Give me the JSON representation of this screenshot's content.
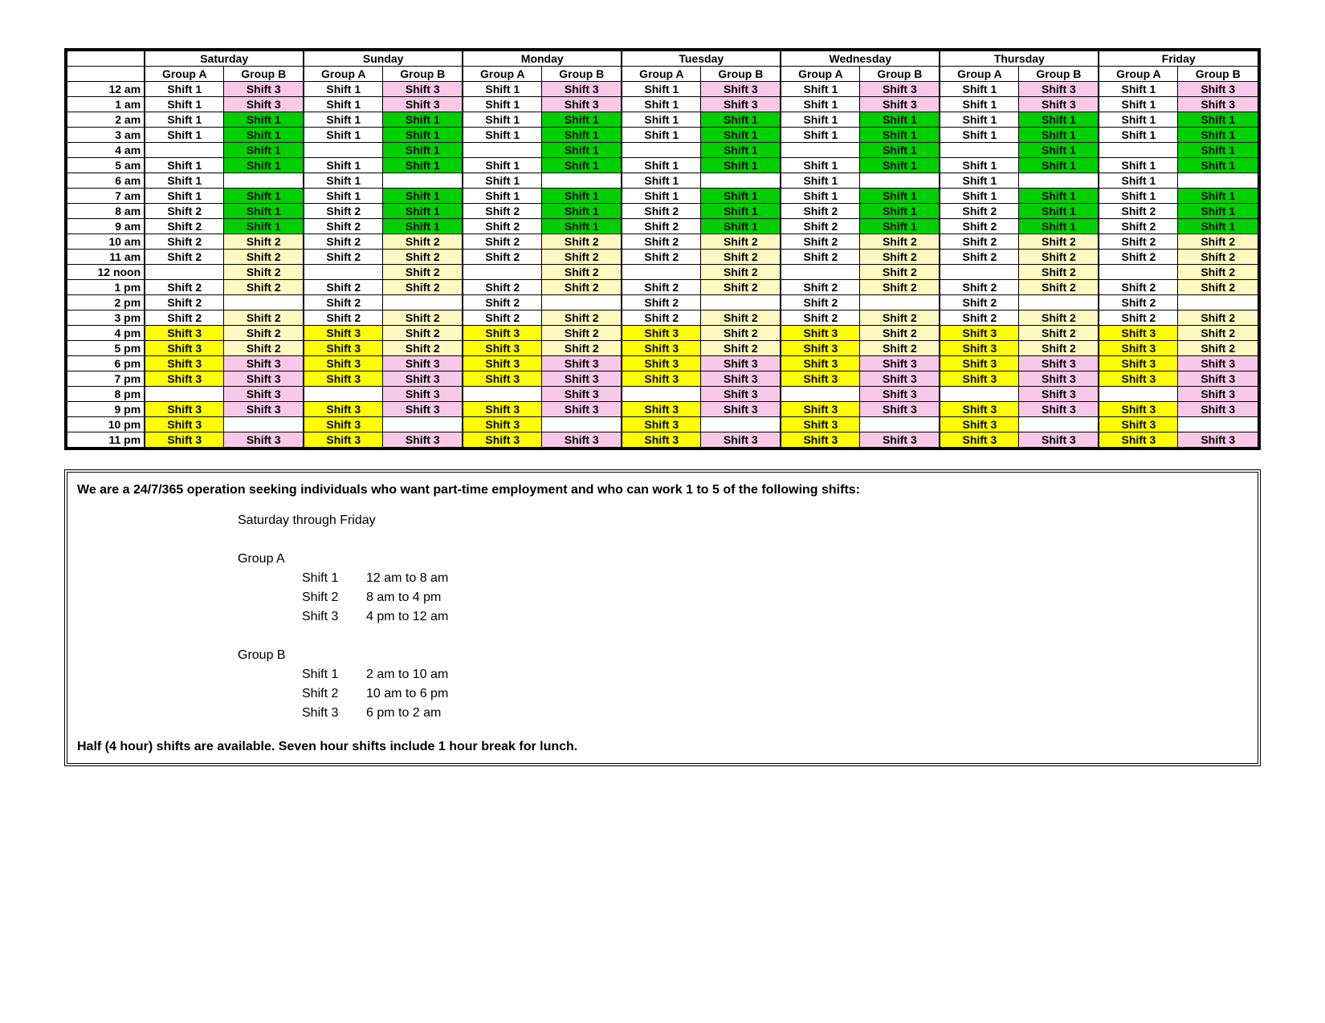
{
  "colors": {
    "white": "#ffffff",
    "green": "#00d000",
    "pink": "#f8c8e8",
    "yellow": "#ffff00",
    "cream": "#fff8c0"
  },
  "days": [
    "Saturday",
    "Sunday",
    "Monday",
    "Tuesday",
    "Wednesday",
    "Thursday",
    "Friday"
  ],
  "groups": [
    "Group A",
    "Group B"
  ],
  "times": [
    "12 am",
    "1 am",
    "2 am",
    "3 am",
    "4 am",
    "5 am",
    "6 am",
    "7 am",
    "8 am",
    "9 am",
    "10 am",
    "11 am",
    "12 noon",
    "1 pm",
    "2 pm",
    "3 pm",
    "4 pm",
    "5 pm",
    "6 pm",
    "7 pm",
    "8 pm",
    "9 pm",
    "10 pm",
    "11 pm"
  ],
  "pattern": [
    {
      "a": {
        "t": "Shift 1",
        "c": "white"
      },
      "b": {
        "t": "Shift 3",
        "c": "pink"
      }
    },
    {
      "a": {
        "t": "Shift 1",
        "c": "white"
      },
      "b": {
        "t": "Shift 3",
        "c": "pink"
      }
    },
    {
      "a": {
        "t": "Shift 1",
        "c": "white"
      },
      "b": {
        "t": "Shift 1",
        "c": "green"
      }
    },
    {
      "a": {
        "t": "Shift 1",
        "c": "white"
      },
      "b": {
        "t": "Shift 1",
        "c": "green"
      }
    },
    {
      "a": {
        "t": "",
        "c": "white"
      },
      "b": {
        "t": "Shift 1",
        "c": "green"
      }
    },
    {
      "a": {
        "t": "Shift 1",
        "c": "white"
      },
      "b": {
        "t": "Shift 1",
        "c": "green"
      }
    },
    {
      "a": {
        "t": "Shift 1",
        "c": "white"
      },
      "b": {
        "t": "",
        "c": "white"
      }
    },
    {
      "a": {
        "t": "Shift 1",
        "c": "white"
      },
      "b": {
        "t": "Shift 1",
        "c": "green"
      }
    },
    {
      "a": {
        "t": "Shift 2",
        "c": "white"
      },
      "b": {
        "t": "Shift 1",
        "c": "green"
      }
    },
    {
      "a": {
        "t": "Shift 2",
        "c": "white"
      },
      "b": {
        "t": "Shift 1",
        "c": "green"
      }
    },
    {
      "a": {
        "t": "Shift 2",
        "c": "white"
      },
      "b": {
        "t": "Shift 2",
        "c": "cream"
      }
    },
    {
      "a": {
        "t": "Shift 2",
        "c": "white"
      },
      "b": {
        "t": "Shift 2",
        "c": "cream"
      }
    },
    {
      "a": {
        "t": "",
        "c": "white"
      },
      "b": {
        "t": "Shift 2",
        "c": "cream"
      }
    },
    {
      "a": {
        "t": "Shift 2",
        "c": "white"
      },
      "b": {
        "t": "Shift 2",
        "c": "cream"
      }
    },
    {
      "a": {
        "t": "Shift 2",
        "c": "white"
      },
      "b": {
        "t": "",
        "c": "white"
      }
    },
    {
      "a": {
        "t": "Shift 2",
        "c": "white"
      },
      "b": {
        "t": "Shift 2",
        "c": "cream"
      }
    },
    {
      "a": {
        "t": "Shift 3",
        "c": "yellow"
      },
      "b": {
        "t": "Shift 2",
        "c": "cream"
      }
    },
    {
      "a": {
        "t": "Shift 3",
        "c": "yellow"
      },
      "b": {
        "t": "Shift 2",
        "c": "cream"
      }
    },
    {
      "a": {
        "t": "Shift 3",
        "c": "yellow"
      },
      "b": {
        "t": "Shift 3",
        "c": "pink"
      }
    },
    {
      "a": {
        "t": "Shift 3",
        "c": "yellow"
      },
      "b": {
        "t": "Shift 3",
        "c": "pink"
      }
    },
    {
      "a": {
        "t": "",
        "c": "white"
      },
      "b": {
        "t": "Shift 3",
        "c": "pink"
      }
    },
    {
      "a": {
        "t": "Shift 3",
        "c": "yellow"
      },
      "b": {
        "t": "Shift 3",
        "c": "pink"
      }
    },
    {
      "a": {
        "t": "Shift 3",
        "c": "yellow"
      },
      "b": {
        "t": "",
        "c": "white"
      }
    },
    {
      "a": {
        "t": "Shift 3",
        "c": "yellow"
      },
      "b": {
        "t": "Shift 3",
        "c": "pink"
      }
    }
  ],
  "desc": {
    "headline": "We are a 24/7/365 operation seeking individuals who want part-time employment and who can work 1 to 5 of the following shifts:",
    "days_line": "Saturday through Friday",
    "groupA_label": "Group A",
    "groupA_shifts": [
      {
        "label": "Shift 1",
        "time": "12 am to 8 am"
      },
      {
        "label": "Shift 2",
        "time": "8 am to 4 pm"
      },
      {
        "label": "Shift 3",
        "time": "4 pm to 12 am"
      }
    ],
    "groupB_label": "Group B",
    "groupB_shifts": [
      {
        "label": "Shift 1",
        "time": "2 am to 10 am"
      },
      {
        "label": "Shift 2",
        "time": "10 am to 6 pm"
      },
      {
        "label": "Shift 3",
        "time": "6 pm to 2 am"
      }
    ],
    "footer": "Half (4 hour) shifts are available.  Seven hour shifts include 1 hour break for lunch."
  }
}
